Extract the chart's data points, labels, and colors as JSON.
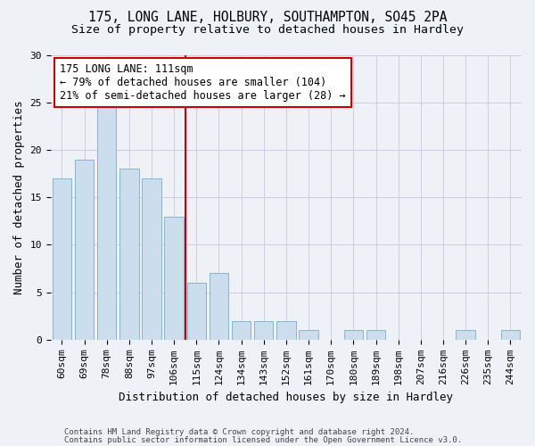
{
  "title1": "175, LONG LANE, HOLBURY, SOUTHAMPTON, SO45 2PA",
  "title2": "Size of property relative to detached houses in Hardley",
  "xlabel": "Distribution of detached houses by size in Hardley",
  "ylabel": "Number of detached properties",
  "categories": [
    "60sqm",
    "69sqm",
    "78sqm",
    "88sqm",
    "97sqm",
    "106sqm",
    "115sqm",
    "124sqm",
    "134sqm",
    "143sqm",
    "152sqm",
    "161sqm",
    "170sqm",
    "180sqm",
    "189sqm",
    "198sqm",
    "207sqm",
    "216sqm",
    "226sqm",
    "235sqm",
    "244sqm"
  ],
  "values": [
    17,
    19,
    25,
    18,
    17,
    13,
    6,
    7,
    2,
    2,
    2,
    1,
    0,
    1,
    1,
    0,
    0,
    0,
    1,
    0,
    1
  ],
  "bar_color": "#ccdded",
  "bar_edgecolor": "#8ab4cc",
  "grid_color": "#ccccdd",
  "vline_x_index": 6,
  "vline_color": "#cc0000",
  "annotation_line1": "175 LONG LANE: 111sqm",
  "annotation_line2": "← 79% of detached houses are smaller (104)",
  "annotation_line3": "21% of semi-detached houses are larger (28) →",
  "annotation_box_color": "#ffffff",
  "annotation_box_edgecolor": "#cc0000",
  "ylim": [
    0,
    30
  ],
  "yticks": [
    0,
    5,
    10,
    15,
    20,
    25,
    30
  ],
  "footer1": "Contains HM Land Registry data © Crown copyright and database right 2024.",
  "footer2": "Contains public sector information licensed under the Open Government Licence v3.0.",
  "background_color": "#eef2f7",
  "title_fontsize": 10.5,
  "subtitle_fontsize": 9.5,
  "axis_label_fontsize": 9,
  "tick_fontsize": 8,
  "annotation_fontsize": 8.5,
  "footer_fontsize": 6.5,
  "figsize": [
    6.0,
    5.0
  ],
  "dpi": 100
}
